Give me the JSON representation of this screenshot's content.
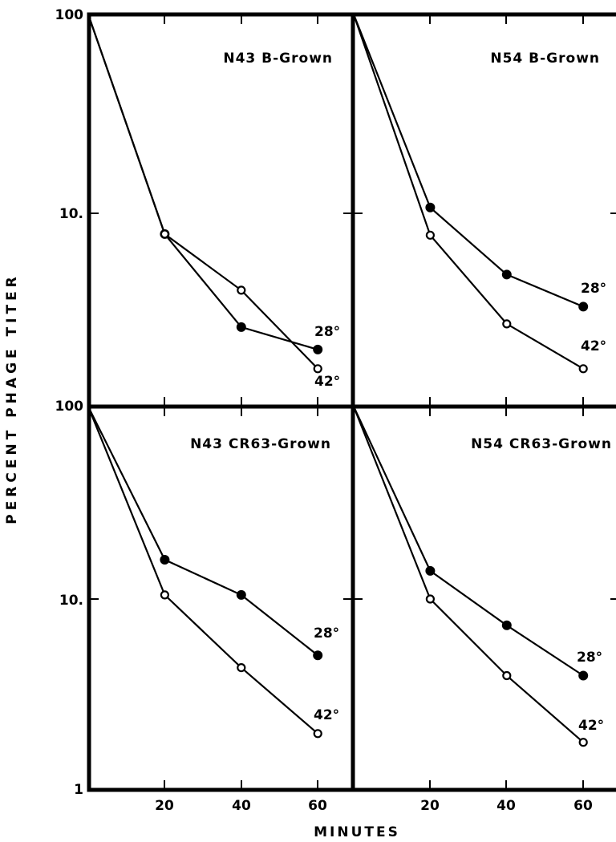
{
  "figure": {
    "ylabel": "PERCENT PHAGE TITER",
    "xlabel": "MINUTES",
    "y_tick_labels_top": [
      "100",
      "10."
    ],
    "y_tick_labels_bottom": [
      "100",
      "10.",
      "1"
    ],
    "x_tick_labels": [
      "20",
      "40",
      "60"
    ]
  },
  "chart_data": [
    {
      "type": "line",
      "title": "N43 B-Grown",
      "xlabel": "MINUTES",
      "ylabel": "PERCENT PHAGE TITER",
      "yscale": "log",
      "x": [
        0,
        20,
        40,
        60
      ],
      "xlim": [
        0,
        70
      ],
      "ylim": [
        1,
        100
      ],
      "series": [
        {
          "name": "28°",
          "marker": "filled-circle",
          "x": [
            0,
            20,
            40,
            60
          ],
          "values": [
            100,
            7.7,
            2.6,
            2.0
          ]
        },
        {
          "name": "42°",
          "marker": "open-circle",
          "x": [
            0,
            20,
            40,
            60
          ],
          "values": [
            100,
            7.7,
            4.0,
            1.6
          ]
        }
      ]
    },
    {
      "type": "line",
      "title": "N54 B-Grown",
      "xlabel": "MINUTES",
      "ylabel": "PERCENT PHAGE TITER",
      "yscale": "log",
      "x": [
        0,
        20,
        40,
        60
      ],
      "xlim": [
        0,
        70
      ],
      "ylim": [
        1,
        100
      ],
      "series": [
        {
          "name": "28°",
          "marker": "filled-circle",
          "x": [
            0,
            20,
            40,
            60
          ],
          "values": [
            100,
            10.5,
            4.8,
            3.3
          ]
        },
        {
          "name": "42°",
          "marker": "open-circle",
          "x": [
            0,
            20,
            40,
            60
          ],
          "values": [
            100,
            7.6,
            2.7,
            1.6
          ]
        }
      ]
    },
    {
      "type": "line",
      "title": "N43 CR63-Grown",
      "xlabel": "MINUTES",
      "ylabel": "PERCENT PHAGE TITER",
      "yscale": "log",
      "x": [
        0,
        20,
        40,
        60
      ],
      "xlim": [
        0,
        70
      ],
      "ylim": [
        1,
        100
      ],
      "series": [
        {
          "name": "28°",
          "marker": "filled-circle",
          "x": [
            0,
            20,
            40,
            60
          ],
          "values": [
            100,
            16,
            10.5,
            5.1
          ]
        },
        {
          "name": "42°",
          "marker": "open-circle",
          "x": [
            0,
            20,
            40,
            60
          ],
          "values": [
            100,
            10.5,
            4.4,
            2.0
          ]
        }
      ]
    },
    {
      "type": "line",
      "title": "N54 CR63-Grown",
      "xlabel": "MINUTES",
      "ylabel": "PERCENT PHAGE TITER",
      "yscale": "log",
      "x": [
        0,
        20,
        40,
        60
      ],
      "xlim": [
        0,
        70
      ],
      "ylim": [
        1,
        100
      ],
      "series": [
        {
          "name": "28°",
          "marker": "filled-circle",
          "x": [
            0,
            20,
            40,
            60
          ],
          "values": [
            100,
            14,
            7.3,
            4.0
          ]
        },
        {
          "name": "42°",
          "marker": "open-circle",
          "x": [
            0,
            20,
            40,
            60
          ],
          "values": [
            100,
            10,
            4.0,
            1.8
          ]
        }
      ]
    }
  ]
}
